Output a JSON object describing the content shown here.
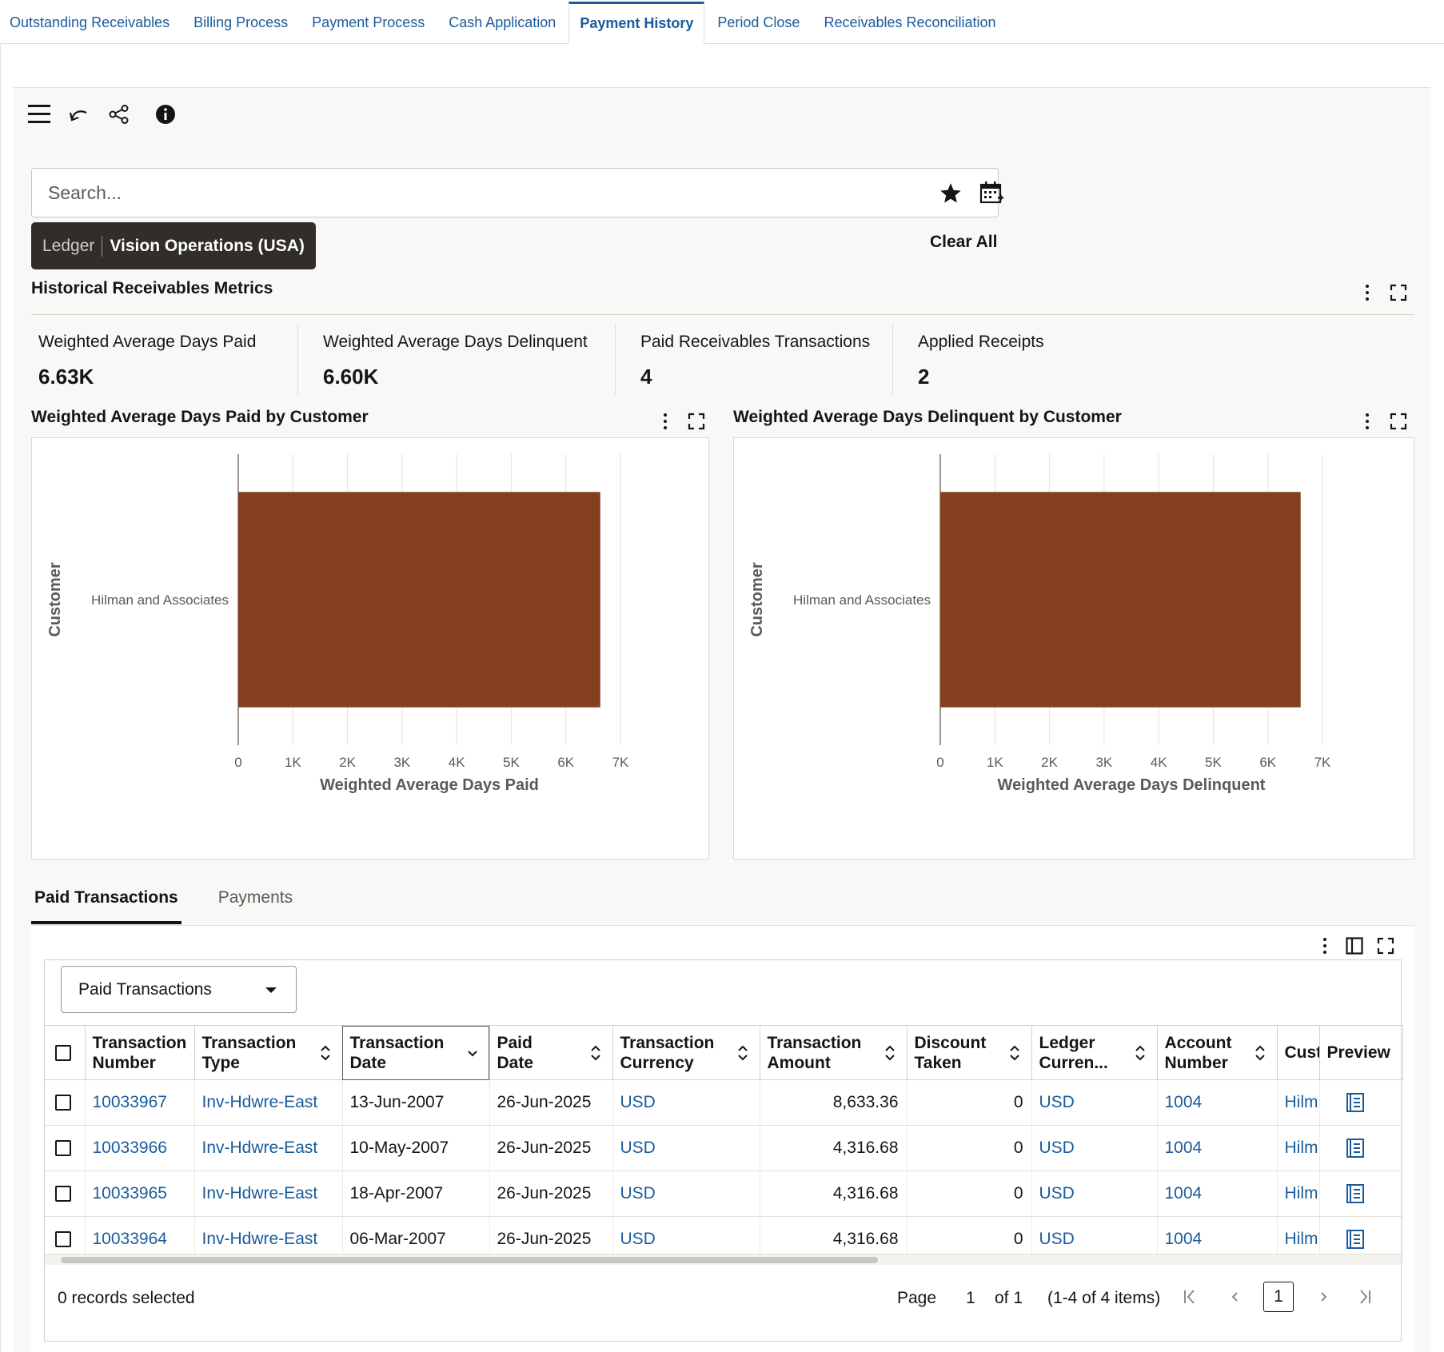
{
  "top_tabs": [
    {
      "label": "Outstanding Receivables",
      "active": false
    },
    {
      "label": "Billing Process",
      "active": false
    },
    {
      "label": "Payment Process",
      "active": false
    },
    {
      "label": "Cash Application",
      "active": false
    },
    {
      "label": "Payment History",
      "active": true
    },
    {
      "label": "Period Close",
      "active": false
    },
    {
      "label": "Receivables Reconciliation",
      "active": false
    }
  ],
  "toolbar": {
    "icons": [
      "hamburger-menu-icon",
      "undo-icon",
      "share-icon",
      "info-icon"
    ]
  },
  "search": {
    "placeholder": "Search...",
    "value": "",
    "favorite_icon": "star-icon",
    "calendar_icon": "calendar-icon"
  },
  "filter_chip": {
    "key": "Ledger",
    "value": "Vision Operations (USA)"
  },
  "clear_all_label": "Clear All",
  "metrics_section": {
    "title": "Historical Receivables Metrics",
    "metrics": [
      {
        "label": "Weighted Average Days Paid",
        "value": "6.63K"
      },
      {
        "label": "Weighted Average Days Delinquent",
        "value": "6.60K"
      },
      {
        "label": "Paid Receivables Transactions",
        "value": "4"
      },
      {
        "label": "Applied Receipts",
        "value": "2"
      }
    ]
  },
  "colors": {
    "bar": "#843f1f",
    "link": "#1a5b9c",
    "accent": "#1a5b9c"
  },
  "chart_data": [
    {
      "type": "bar",
      "orientation": "horizontal",
      "title": "Weighted Average Days Paid by Customer",
      "categories": [
        "Hilman and Associates"
      ],
      "values": [
        6630
      ],
      "xlabel": "Weighted Average Days Paid",
      "ylabel": "Customer",
      "xlim": [
        0,
        7000
      ],
      "ticks": [
        "0",
        "1K",
        "2K",
        "3K",
        "4K",
        "5K",
        "6K",
        "7K"
      ],
      "grid": true
    },
    {
      "type": "bar",
      "orientation": "horizontal",
      "title": "Weighted Average Days Delinquent by Customer",
      "categories": [
        "Hilman and Associates"
      ],
      "values": [
        6600
      ],
      "xlabel": "Weighted Average Days Delinquent",
      "ylabel": "Customer",
      "xlim": [
        0,
        7000
      ],
      "ticks": [
        "0",
        "1K",
        "2K",
        "3K",
        "4K",
        "5K",
        "6K",
        "7K"
      ],
      "grid": true
    }
  ],
  "sub_tabs": [
    {
      "label": "Paid Transactions",
      "active": true
    },
    {
      "label": "Payments",
      "active": false
    }
  ],
  "table": {
    "view_select": "Paid Transactions",
    "columns": [
      {
        "label": "Transaction Number",
        "sortable": false
      },
      {
        "label": "Transaction Type",
        "sortable": true
      },
      {
        "label": "Transaction Date",
        "sortable": true,
        "sorted": "desc"
      },
      {
        "label": "Paid Date",
        "sortable": true
      },
      {
        "label": "Transaction Currency",
        "sortable": true
      },
      {
        "label": "Transaction Amount",
        "sortable": true
      },
      {
        "label": "Discount Taken",
        "sortable": true
      },
      {
        "label": "Ledger Curren...",
        "sortable": true
      },
      {
        "label": "Account Number",
        "sortable": true
      },
      {
        "label": "Cust",
        "sortable": false
      },
      {
        "label": "Preview",
        "sortable": false
      }
    ],
    "rows": [
      {
        "number": "10033967",
        "type": "Inv-Hdwre-East",
        "date": "13-Jun-2007",
        "paid": "26-Jun-2025",
        "currency": "USD",
        "amount": "8,633.36",
        "discount": "0",
        "ledger_currency": "USD",
        "account": "1004",
        "customer": "Hilm"
      },
      {
        "number": "10033966",
        "type": "Inv-Hdwre-East",
        "date": "10-May-2007",
        "paid": "26-Jun-2025",
        "currency": "USD",
        "amount": "4,316.68",
        "discount": "0",
        "ledger_currency": "USD",
        "account": "1004",
        "customer": "Hilm"
      },
      {
        "number": "10033965",
        "type": "Inv-Hdwre-East",
        "date": "18-Apr-2007",
        "paid": "26-Jun-2025",
        "currency": "USD",
        "amount": "4,316.68",
        "discount": "0",
        "ledger_currency": "USD",
        "account": "1004",
        "customer": "Hilm"
      },
      {
        "number": "10033964",
        "type": "Inv-Hdwre-East",
        "date": "06-Mar-2007",
        "paid": "26-Jun-2025",
        "currency": "USD",
        "amount": "4,316.68",
        "discount": "0",
        "ledger_currency": "USD",
        "account": "1004",
        "customer": "Hilm"
      }
    ],
    "footer": {
      "records_selected": "0 records selected",
      "page_label": "Page",
      "page_value": "1",
      "of_label": "of 1",
      "items_label": "(1-4 of 4 items)",
      "current_page": "1"
    }
  }
}
